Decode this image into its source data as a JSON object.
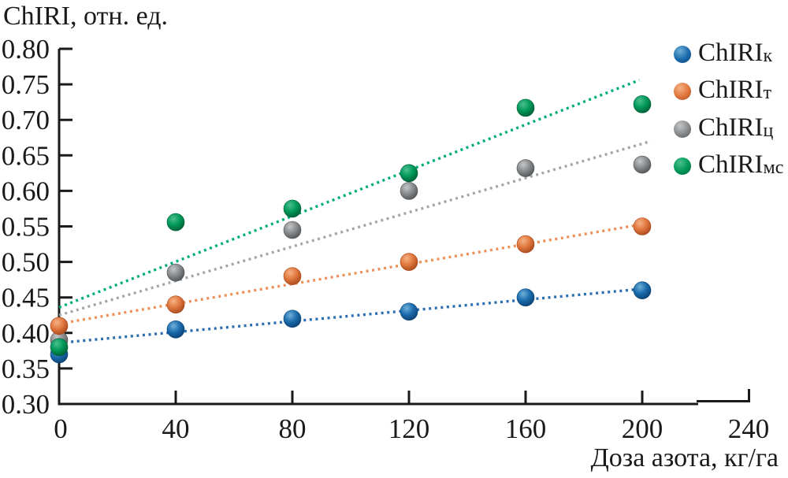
{
  "chart_data": {
    "type": "scatter",
    "title": "ChIRI, отн. ед.",
    "xlabel": "Доза азота, кг/га",
    "ylabel": "ChIRI, отн. ед.",
    "xlim": [
      0,
      240
    ],
    "ylim": [
      0.3,
      0.8
    ],
    "grid": false,
    "legend_position": "top-right",
    "x_ticks": [
      0,
      40,
      80,
      120,
      160,
      200,
      240
    ],
    "x_tick_labels": [
      "0",
      "40",
      "80",
      "120",
      "160",
      "200",
      "240"
    ],
    "y_ticks": [
      0.8,
      0.75,
      0.7,
      0.65,
      0.6,
      0.55,
      0.5,
      0.45,
      0.4,
      0.35,
      0.3
    ],
    "y_tick_labels": [
      "0.80",
      "0.75",
      "0.70",
      "0.65",
      "0.60",
      "0.55",
      "0.50",
      "0.45",
      "0.40",
      "0.35",
      "0.30"
    ],
    "x": [
      0,
      40,
      80,
      120,
      160,
      200
    ],
    "series": [
      {
        "name": "ChIRIк",
        "label_main": "ChIRI",
        "label_sub": "к",
        "values": [
          0.37,
          0.405,
          0.42,
          0.43,
          0.45,
          0.46
        ],
        "trend": {
          "x": [
            0,
            200
          ],
          "y": [
            0.386,
            0.462
          ]
        },
        "colors": {
          "base": "#1b6bad",
          "light": "#6fb0d8",
          "dark": "#0a4173",
          "trend": "#2b6fb2"
        }
      },
      {
        "name": "ChIRIт",
        "label_main": "ChIRI",
        "label_sub": "т",
        "values": [
          0.41,
          0.44,
          0.48,
          0.5,
          0.525,
          0.55
        ],
        "trend": {
          "x": [
            0,
            200
          ],
          "y": [
            0.413,
            0.553
          ]
        },
        "colors": {
          "base": "#e0773e",
          "light": "#f5b285",
          "dark": "#a8481a",
          "trend": "#ee9059"
        }
      },
      {
        "name": "ChIRIц",
        "label_main": "ChIRI",
        "label_sub": "ц",
        "values": [
          0.39,
          0.485,
          0.545,
          0.6,
          0.632,
          0.637
        ],
        "trend": {
          "x": [
            0,
            203
          ],
          "y": [
            0.425,
            0.67
          ]
        },
        "colors": {
          "base": "#87898b",
          "light": "#c4c6c7",
          "dark": "#515456",
          "trend": "#a2a7aa"
        }
      },
      {
        "name": "ChIRIмс",
        "label_main": "ChIRI",
        "label_sub": "мс",
        "values": [
          0.38,
          0.556,
          0.575,
          0.625,
          0.717,
          0.722
        ],
        "trend": {
          "x": [
            0,
            199
          ],
          "y": [
            0.436,
            0.756
          ]
        },
        "colors": {
          "base": "#00985a",
          "light": "#4cc08f",
          "dark": "#005f35",
          "trend": "#00ab7d"
        }
      }
    ],
    "point_draw_order": [
      0,
      2,
      1,
      3
    ]
  }
}
